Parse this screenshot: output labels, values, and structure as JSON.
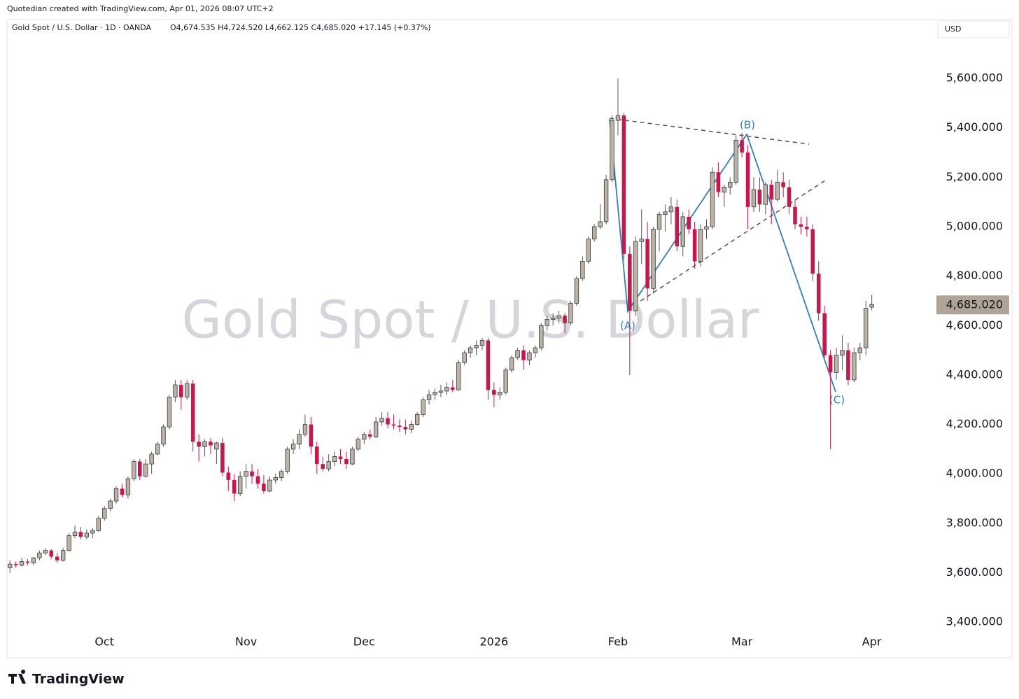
{
  "chart_data": {
    "type": "candlestick",
    "credit": "Quotedian created with TradingView.com, Apr 01, 2026 08:07 UTC+2",
    "title": "Gold Spot / U.S. Dollar · 1D · OANDA",
    "ohlc_text": "O4,674.535 H4,724.520 L4,662.125 C4,685.020 +17.145 (+0.37%)",
    "watermark": "Gold Spot / U.S. Dollar",
    "currency": "USD",
    "brand": "TradingView",
    "wave_labels": [
      "(A)",
      "(B)",
      "(C)"
    ],
    "up_color": "#bcb2a6",
    "down_color": "#c8174a",
    "open": [
      3620,
      3635,
      3630,
      3645,
      3640,
      3660,
      3680,
      3690,
      3665,
      3650,
      3690,
      3750,
      3765,
      3745,
      3760,
      3770,
      3820,
      3860,
      3890,
      3940,
      3915,
      3980,
      4050,
      3990,
      4040,
      4080,
      4120,
      4190,
      4310,
      4360,
      4310,
      4365,
      4130,
      4110,
      4130,
      4100,
      4125,
      4005,
      3975,
      3920,
      3990,
      4010,
      3990,
      3960,
      3930,
      3975,
      3985,
      4010,
      4100,
      4120,
      4160,
      4200,
      4110,
      4040,
      4020,
      4050,
      4070,
      4060,
      4040,
      4100,
      4140,
      4160,
      4150,
      4210,
      4225,
      4200,
      4195,
      4190,
      4180,
      4200,
      4240,
      4300,
      4320,
      4330,
      4335,
      4350,
      4340,
      4450,
      4490,
      4510,
      4520,
      4540,
      4340,
      4320,
      4330,
      4420,
      4470,
      4500,
      4460,
      4490,
      4510,
      4600,
      4625,
      4630,
      4640,
      4610,
      4690,
      4790,
      4860,
      4950,
      5000,
      5020,
      5190,
      5430,
      5450,
      4890,
      4660,
      4940,
      4950,
      4750,
      4990,
      5050,
      5060,
      5080,
      4920,
      5040,
      4990,
      4860,
      4990,
      5000,
      5220,
      5140,
      5160,
      5180,
      5350,
      5300,
      5080,
      5150,
      5090,
      5170,
      5110,
      5180,
      5160,
      5080,
      5010,
      5000,
      4990,
      4810,
      4650,
      4480,
      4410,
      4480,
      4500,
      4380,
      4490,
      4510,
      4674.535
    ],
    "high": [
      3650,
      3645,
      3660,
      3655,
      3665,
      3690,
      3700,
      3695,
      3680,
      3700,
      3760,
      3790,
      3785,
      3775,
      3780,
      3830,
      3870,
      3900,
      3950,
      3960,
      3990,
      4060,
      4060,
      4060,
      4090,
      4130,
      4200,
      4320,
      4380,
      4380,
      4380,
      4380,
      4160,
      4140,
      4145,
      4130,
      4145,
      4030,
      4000,
      4010,
      4040,
      4040,
      4020,
      3995,
      3990,
      4000,
      4020,
      4110,
      4140,
      4180,
      4240,
      4230,
      4130,
      4070,
      4080,
      4090,
      4100,
      4090,
      4110,
      4150,
      4170,
      4180,
      4230,
      4250,
      4250,
      4240,
      4220,
      4220,
      4215,
      4250,
      4310,
      4340,
      4345,
      4360,
      4370,
      4380,
      4460,
      4500,
      4520,
      4540,
      4550,
      4550,
      4370,
      4350,
      4430,
      4480,
      4510,
      4520,
      4500,
      4520,
      4610,
      4640,
      4650,
      4660,
      4650,
      4700,
      4800,
      4880,
      4960,
      5010,
      5090,
      5210,
      5450,
      5600,
      5460,
      4920,
      4960,
      5070,
      5020,
      5000,
      5060,
      5090,
      5120,
      5110,
      5060,
      5070,
      5020,
      5010,
      5030,
      5240,
      5260,
      5170,
      5200,
      5370,
      5380,
      5330,
      5200,
      5200,
      5180,
      5190,
      5230,
      5220,
      5190,
      5110,
      5040,
      5040,
      5010,
      4860,
      4680,
      4500,
      4510,
      4560,
      4530,
      4510,
      4530,
      4700,
      4724.52
    ],
    "low": [
      3600,
      3620,
      3625,
      3630,
      3630,
      3650,
      3670,
      3655,
      3640,
      3645,
      3685,
      3740,
      3735,
      3735,
      3740,
      3765,
      3810,
      3850,
      3880,
      3905,
      3900,
      3970,
      3975,
      3985,
      4000,
      4075,
      4110,
      4180,
      4290,
      4260,
      4300,
      4090,
      4050,
      4070,
      4080,
      4040,
      3990,
      3930,
      3890,
      3910,
      3940,
      3960,
      3940,
      3920,
      3925,
      3960,
      3970,
      4000,
      4080,
      4100,
      4150,
      4080,
      4000,
      4010,
      4010,
      4030,
      4040,
      4020,
      4035,
      4090,
      4120,
      4140,
      4145,
      4195,
      4185,
      4180,
      4170,
      4160,
      4165,
      4195,
      4230,
      4280,
      4300,
      4310,
      4320,
      4330,
      4335,
      4440,
      4470,
      4480,
      4500,
      4300,
      4270,
      4300,
      4320,
      4410,
      4460,
      4420,
      4440,
      4470,
      4500,
      4580,
      4600,
      4610,
      4570,
      4600,
      4680,
      4780,
      4850,
      4940,
      4990,
      5010,
      5180,
      5370,
      4870,
      4400,
      4640,
      4850,
      4700,
      4730,
      4900,
      4980,
      5010,
      4900,
      4880,
      4970,
      4830,
      4840,
      4950,
      4990,
      5120,
      5080,
      5130,
      5170,
      5280,
      4990,
      5060,
      5060,
      5050,
      5010,
      5100,
      5120,
      5050,
      4990,
      4970,
      4960,
      4780,
      4620,
      4470,
      4100,
      4380,
      4420,
      4360,
      4370,
      4460,
      4480,
      4662.125
    ],
    "close": [
      3635,
      3630,
      3645,
      3640,
      3660,
      3680,
      3690,
      3665,
      3650,
      3690,
      3750,
      3765,
      3745,
      3760,
      3770,
      3820,
      3860,
      3890,
      3940,
      3915,
      3980,
      4050,
      3990,
      4040,
      4080,
      4120,
      4190,
      4310,
      4360,
      4310,
      4365,
      4130,
      4110,
      4130,
      4115,
      4125,
      4005,
      3975,
      3920,
      3990,
      4010,
      3990,
      3960,
      3930,
      3975,
      3985,
      4010,
      4100,
      4120,
      4160,
      4200,
      4110,
      4040,
      4020,
      4050,
      4070,
      4060,
      4040,
      4100,
      4140,
      4160,
      4150,
      4210,
      4225,
      4200,
      4195,
      4190,
      4180,
      4200,
      4240,
      4300,
      4320,
      4330,
      4335,
      4350,
      4340,
      4450,
      4490,
      4510,
      4520,
      4540,
      4340,
      4320,
      4330,
      4420,
      4470,
      4500,
      4460,
      4490,
      4510,
      4600,
      4625,
      4630,
      4640,
      4610,
      4690,
      4790,
      4860,
      4950,
      5000,
      5020,
      5190,
      5430,
      5450,
      4890,
      4660,
      4940,
      4950,
      4750,
      4990,
      5050,
      5060,
      5080,
      4920,
      5040,
      4990,
      4860,
      4990,
      5000,
      5220,
      5140,
      5160,
      5180,
      5350,
      5300,
      5080,
      5150,
      5090,
      5170,
      5110,
      5180,
      5160,
      5080,
      5010,
      5000,
      4990,
      4810,
      4650,
      4480,
      4410,
      4480,
      4500,
      4380,
      4490,
      4510,
      4670,
      4685.02
    ],
    "last_price": 4685.02,
    "last_price_label": "4,685.020",
    "xlim": [
      -0.5,
      156
    ],
    "xticks": [
      {
        "value": 16,
        "label": "Oct"
      },
      {
        "value": 40,
        "label": "Nov"
      },
      {
        "value": 60,
        "label": "Dec"
      },
      {
        "value": 82,
        "label": "2026"
      },
      {
        "value": 103,
        "label": "Feb"
      },
      {
        "value": 124,
        "label": "Mar"
      },
      {
        "value": 146,
        "label": "Apr"
      }
    ],
    "ylim": [
      3256,
      5838
    ],
    "yticks": [
      {
        "value": 3400,
        "label": "3,400.000"
      },
      {
        "value": 3600,
        "label": "3,600.000"
      },
      {
        "value": 3800,
        "label": "3,800.000"
      },
      {
        "value": 4000,
        "label": "4,000.000"
      },
      {
        "value": 4200,
        "label": "4,200.000"
      },
      {
        "value": 4400,
        "label": "4,400.000"
      },
      {
        "value": 4600,
        "label": "4,600.000"
      },
      {
        "value": 4800,
        "label": "4,800.000"
      },
      {
        "value": 5000,
        "label": "5,000.000"
      },
      {
        "value": 5200,
        "label": "5,200.000"
      },
      {
        "value": 5400,
        "label": "5,400.000"
      },
      {
        "value": 5600,
        "label": "5,600.000"
      }
    ],
    "grid": false
  }
}
